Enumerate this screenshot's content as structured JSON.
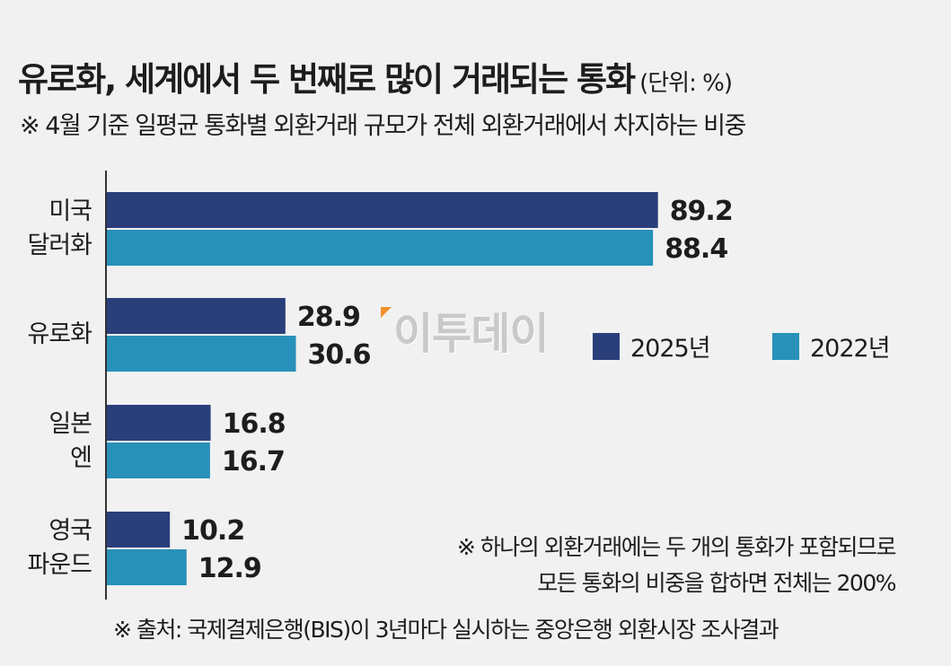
{
  "header": {
    "title": "유로화, 세계에서 두 번째로  많이 거래되는 통화",
    "unit": "(단위: %)",
    "subtitle": "※ 4월 기준 일평균 통화별 외환거래 규모가 전체 외환거래에서 차지하는 비중"
  },
  "watermark": "이투데이",
  "chart_data": {
    "type": "bar",
    "orientation": "horizontal",
    "categories": [
      "미국\n달러화",
      "유로화",
      "일본\n엔",
      "영국\n파운드"
    ],
    "category_lines": [
      [
        "미국",
        "달러화"
      ],
      [
        "유로화"
      ],
      [
        "일본",
        "엔"
      ],
      [
        "영국",
        "파운드"
      ]
    ],
    "series": [
      {
        "name": "2025년",
        "values": [
          89.2,
          28.9,
          16.8,
          10.2
        ],
        "color": "#2a3f7a"
      },
      {
        "name": "2022년",
        "values": [
          88.4,
          30.6,
          16.7,
          12.9
        ],
        "color": "#2891b9"
      }
    ],
    "value_labels": [
      [
        "89.2",
        "28.9",
        "16.8",
        "10.2"
      ],
      [
        "88.4",
        "30.6",
        "16.7",
        "12.9"
      ]
    ],
    "legend_position": "right",
    "grid": false
  },
  "notes": {
    "line1": "※ 하나의 외환거래에는 두 개의 통화가 포함되므로",
    "line2": "모든 통화의 비중을 합하면 전체는 200%"
  },
  "source": "※ 출처:  국제결제은행(BIS)이 3년마다 실시하는 중앙은행 외환시장 조사결과"
}
